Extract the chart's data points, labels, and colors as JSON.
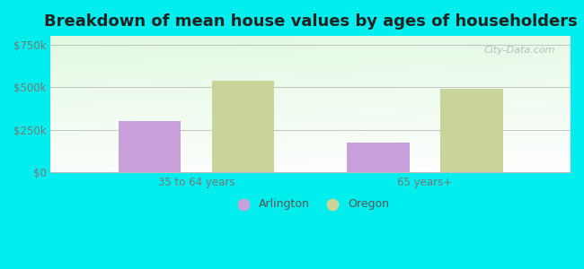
{
  "title": "Breakdown of mean house values by ages of householders",
  "categories": [
    "35 to 64 years",
    "65 years+"
  ],
  "arlington_values": [
    300000,
    175000
  ],
  "oregon_values": [
    540000,
    490000
  ],
  "arlington_color": "#c9a0dc",
  "oregon_color": "#c8d49a",
  "bar_width": 0.12,
  "ylim": [
    0,
    800000
  ],
  "yticks": [
    0,
    250000,
    500000,
    750000
  ],
  "ytick_labels": [
    "$0",
    "$250k",
    "$500k",
    "$750k"
  ],
  "background_color": "#00eeee",
  "plot_bg_color_topleft": "#c8eec8",
  "plot_bg_color_bottomright": "#f5fff5",
  "title_fontsize": 13,
  "tick_fontsize": 8.5,
  "legend_fontsize": 9,
  "watermark": "City-Data.com",
  "legend_labels": [
    "Arlington",
    "Oregon"
  ],
  "group_positions": [
    0.28,
    0.72
  ],
  "bar_gap": 0.06
}
